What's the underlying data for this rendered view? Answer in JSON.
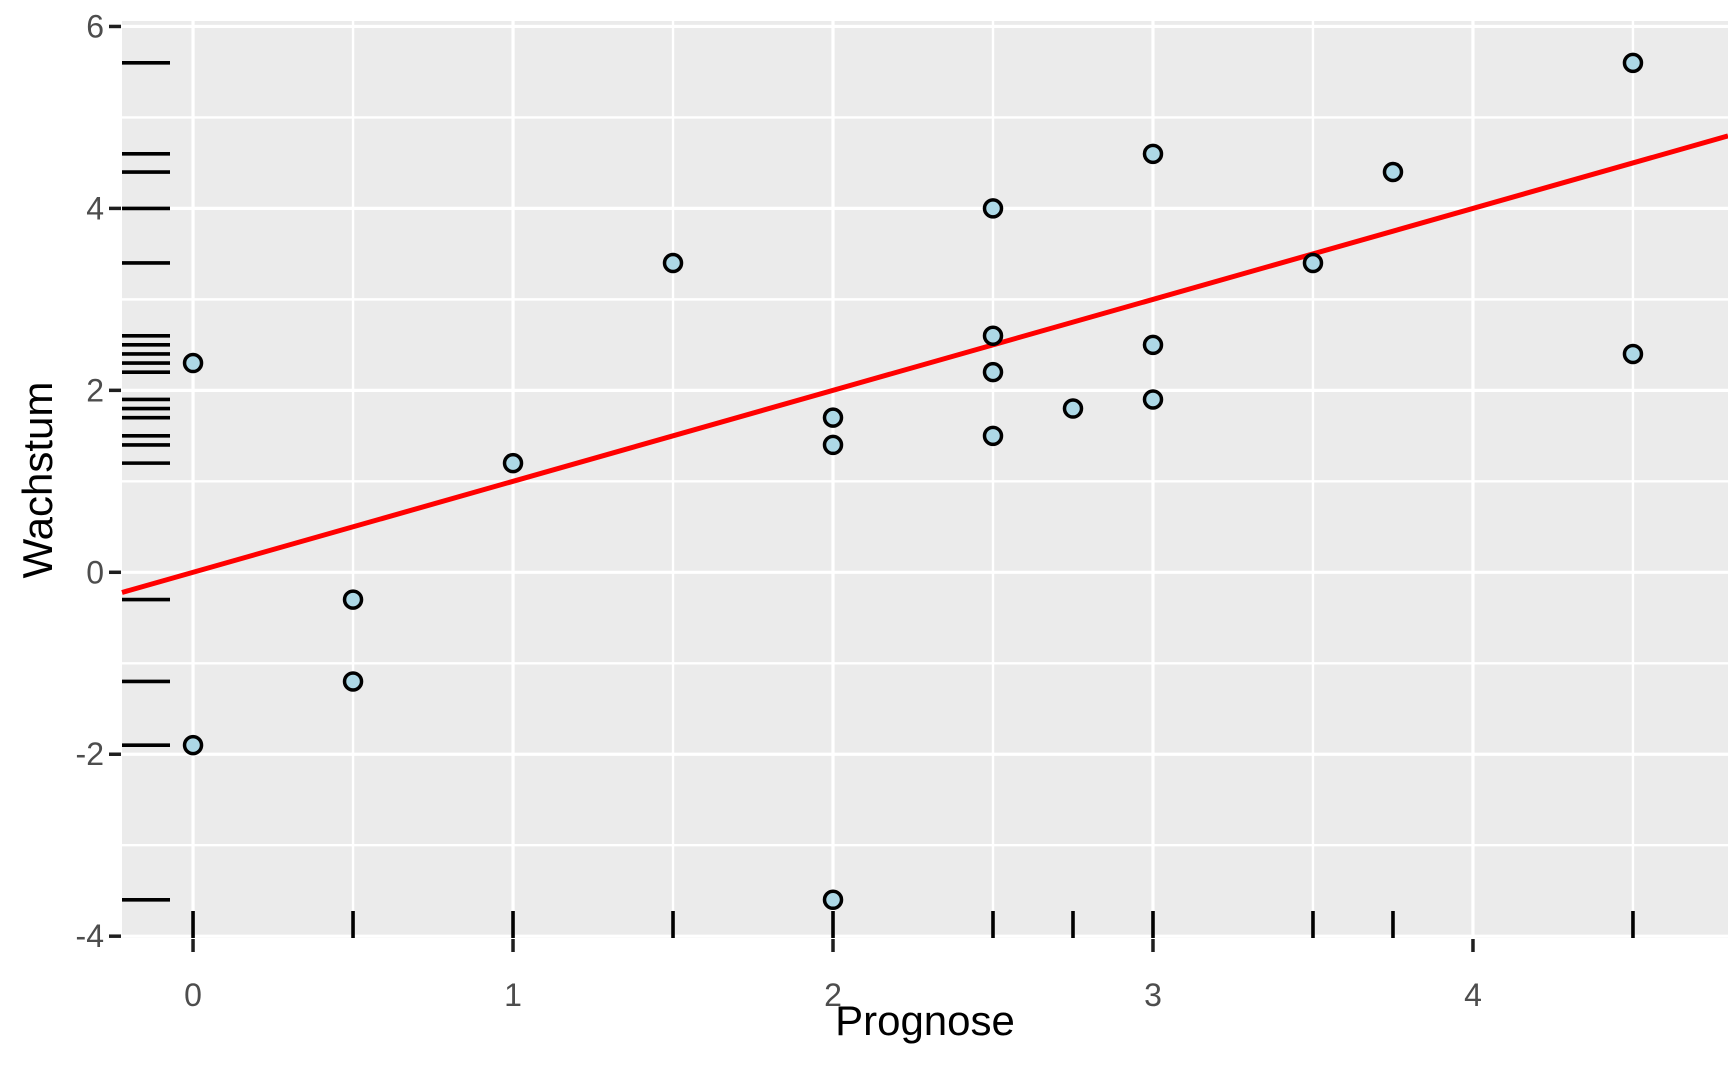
{
  "figure": {
    "background_color": "#FFFFFF",
    "panel_color": "#EBEBEB",
    "grid_color": "#FFFFFF",
    "tick_color": "#1F1F1F",
    "tick_label_color": "#4D4D4D",
    "axis_title_color": "#000000",
    "rug_color": "#000000"
  },
  "chart_data": {
    "type": "scatter",
    "title": "",
    "xlabel": "Prognose",
    "ylabel": "Wachstum",
    "x_ticks": [
      0,
      1,
      2,
      3,
      4
    ],
    "y_ticks": [
      6,
      4,
      2,
      0,
      -2,
      -4
    ],
    "xlim": [
      -0.222,
      4.797
    ],
    "ylim": [
      -4.02,
      6.06
    ],
    "grid": "major and minor, white on grey panel",
    "legend": "none",
    "points": [
      [
        0,
        2.3
      ],
      [
        0,
        -1.9
      ],
      [
        0.5,
        -0.3
      ],
      [
        0.5,
        -1.2
      ],
      [
        1,
        1.2
      ],
      [
        1.5,
        3.4
      ],
      [
        2,
        1.7
      ],
      [
        2,
        1.4
      ],
      [
        2,
        -3.6
      ],
      [
        2.5,
        4.0
      ],
      [
        2.5,
        2.6
      ],
      [
        2.5,
        2.2
      ],
      [
        2.5,
        1.5
      ],
      [
        2.75,
        1.8
      ],
      [
        3,
        4.6
      ],
      [
        3,
        2.5
      ],
      [
        3,
        1.9
      ],
      [
        3.5,
        3.4
      ],
      [
        3.75,
        4.4
      ],
      [
        4.5,
        5.6
      ],
      [
        4.5,
        2.4
      ]
    ],
    "point_fill": "#ADD8E6",
    "point_stroke": "#000000",
    "regression_line": {
      "slope": 1.0,
      "intercept": 0.0,
      "color": "#FF0000"
    },
    "rug_x": [
      0,
      0.5,
      1,
      1.5,
      2,
      2.5,
      2.75,
      3,
      3.5,
      3.75,
      4.5
    ],
    "rug_y": [
      5.6,
      4.6,
      4.4,
      4.0,
      3.4,
      2.6,
      2.5,
      2.4,
      2.3,
      2.2,
      1.9,
      1.8,
      1.7,
      1.5,
      1.4,
      1.2,
      -0.3,
      -1.2,
      -1.9,
      -3.6
    ]
  }
}
